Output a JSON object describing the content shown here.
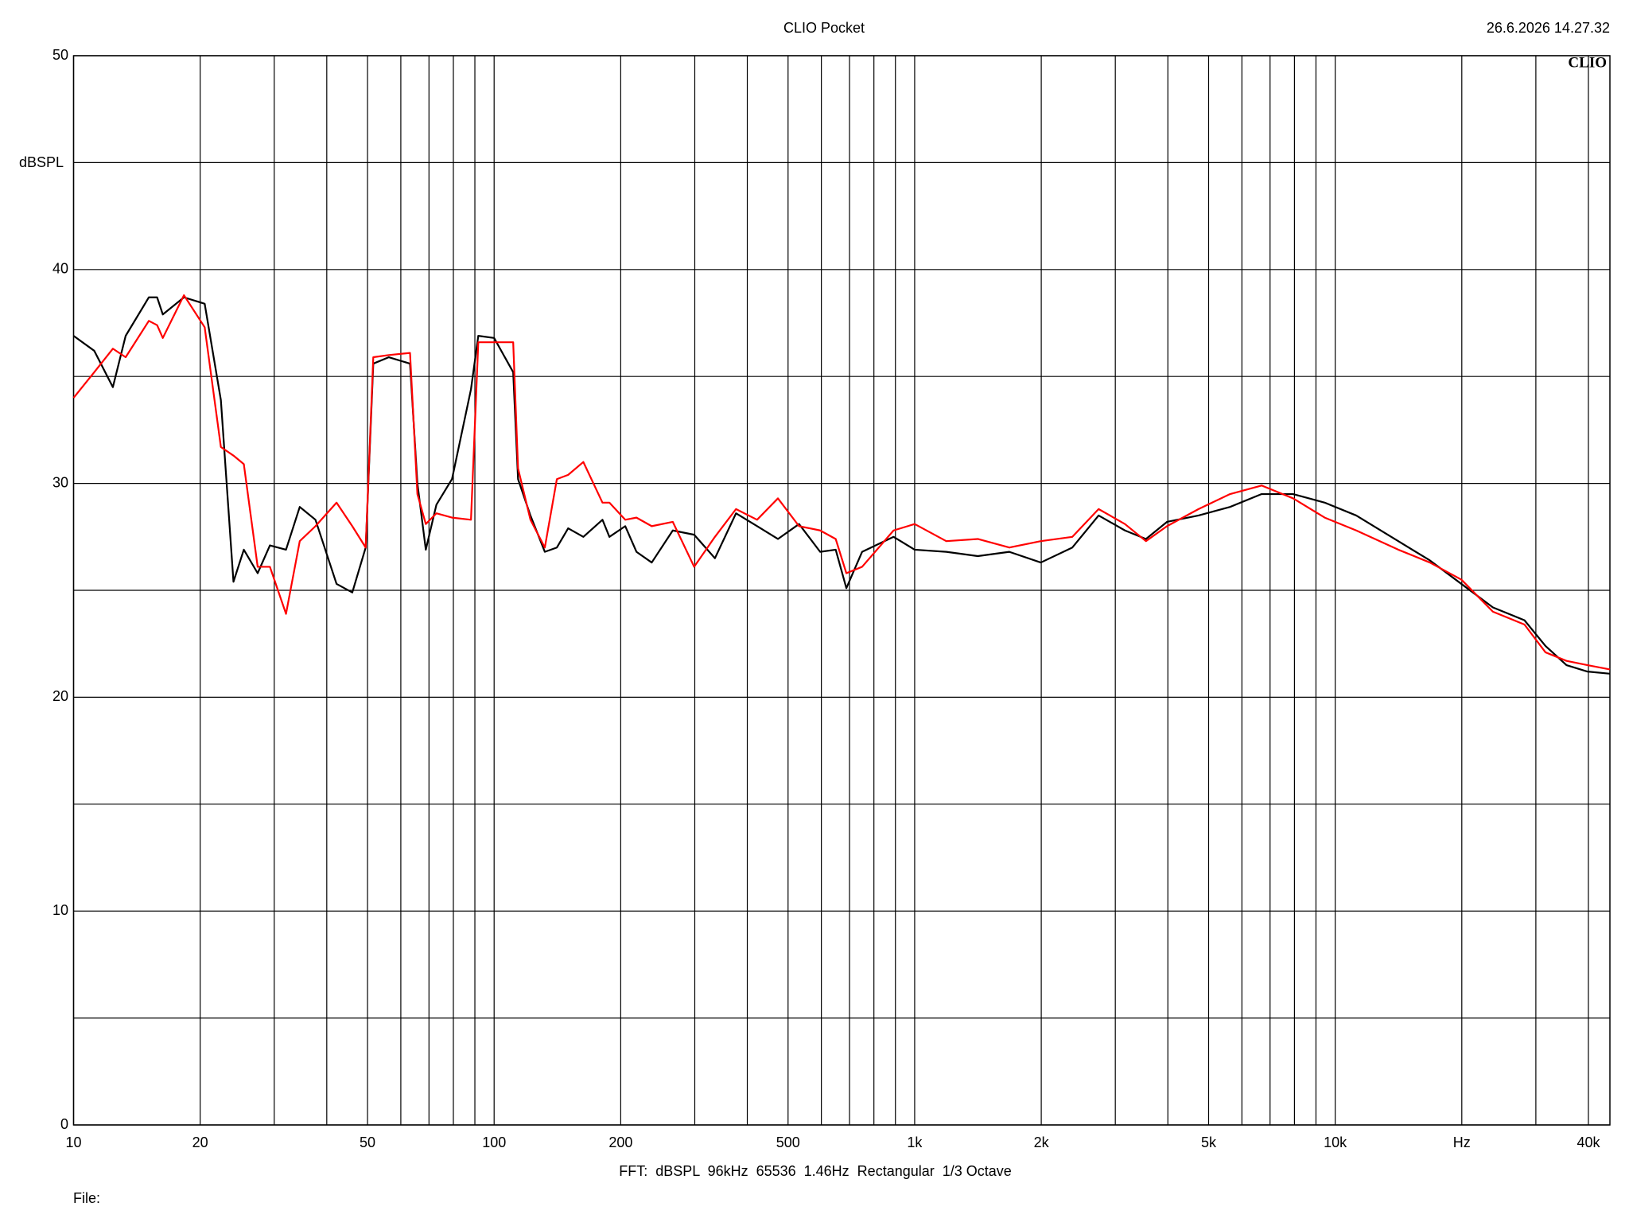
{
  "chart_data": {
    "type": "line",
    "title": "CLIO Pocket",
    "date": "26.6.2026 14.27.32",
    "logo": "CLIO",
    "y_label": "dBSPL",
    "footer": "FFT:  dBSPL  96kHz  65536  1.46Hz  Rectangular  1/3 Octave",
    "file_label": "File:",
    "log_x": true,
    "grid": true,
    "xlim": [
      10,
      45000
    ],
    "ylim": [
      0,
      50
    ],
    "xticks": [
      10,
      20,
      50,
      100,
      200,
      500,
      {
        "value": 1000,
        "label": "1k"
      },
      {
        "value": 2000,
        "label": "2k"
      },
      {
        "value": 5000,
        "label": "5k"
      },
      {
        "value": 10000,
        "label": "10k"
      },
      {
        "value": 20000,
        "label": "Hz"
      },
      {
        "value": 40000,
        "label": "40k"
      }
    ],
    "xminor": [
      30,
      40,
      60,
      70,
      80,
      90,
      300,
      400,
      600,
      700,
      800,
      900,
      3000,
      4000,
      6000,
      7000,
      8000,
      9000,
      30000
    ],
    "yticks": [
      0,
      10,
      20,
      30,
      40,
      50
    ],
    "yminor": [
      5,
      15,
      25,
      35,
      45
    ],
    "x": [
      10,
      11.2,
      12.4,
      13.3,
      15.1,
      15.8,
      16.3,
      18.3,
      20.5,
      22.4,
      24,
      25.4,
      27.4,
      29.3,
      32,
      34.5,
      37.6,
      42.2,
      46,
      49.5,
      51.6,
      56.2,
      63.1,
      65.7,
      68.8,
      72.9,
      79.4,
      88.1,
      91.7,
      100,
      111,
      114,
      122,
      132,
      141,
      150,
      163,
      181,
      188,
      205,
      218,
      237,
      266,
      299,
      335,
      376,
      422,
      473,
      531,
      596,
      649,
      688,
      750,
      891,
      1000,
      1189,
      1413,
      1679,
      1995,
      2371,
      2738,
      3162,
      3548,
      3981,
      4732,
      5623,
      6683,
      7943,
      9441,
      11220,
      14125,
      16788,
      19953,
      23714,
      28184,
      31623,
      35481,
      39811,
      45000
    ],
    "series": [
      {
        "color": "#000000",
        "values": [
          36.9,
          36.2,
          34.5,
          36.9,
          38.7,
          38.7,
          37.9,
          38.7,
          38.4,
          33.9,
          25.4,
          26.9,
          25.8,
          27.1,
          26.9,
          28.9,
          28.3,
          25.3,
          24.9,
          27.0,
          35.6,
          35.9,
          35.6,
          30.0,
          26.9,
          29.0,
          30.2,
          34.4,
          36.9,
          36.8,
          35.2,
          30.2,
          28.5,
          26.8,
          27.0,
          27.9,
          27.5,
          28.3,
          27.5,
          28.0,
          26.8,
          26.3,
          27.8,
          27.6,
          26.5,
          28.6,
          28.0,
          27.4,
          28.1,
          26.8,
          26.9,
          25.1,
          26.8,
          27.5,
          26.9,
          26.8,
          26.6,
          26.8,
          26.3,
          27.0,
          28.5,
          27.8,
          27.4,
          28.2,
          28.5,
          28.9,
          29.5,
          29.5,
          29.1,
          28.5,
          27.3,
          26.4,
          25.3,
          24.2,
          23.6,
          22.4,
          21.5,
          21.2,
          21.1
        ]
      },
      {
        "color": "#ff0000",
        "values": [
          34.0,
          35.2,
          36.3,
          35.9,
          37.6,
          37.4,
          36.8,
          38.8,
          37.3,
          31.7,
          31.3,
          30.9,
          26.1,
          26.1,
          23.9,
          27.3,
          28.0,
          29.1,
          28.0,
          27.0,
          35.9,
          36.0,
          36.1,
          29.5,
          28.1,
          28.6,
          28.4,
          28.3,
          36.6,
          36.6,
          36.6,
          30.7,
          28.3,
          27.0,
          30.2,
          30.4,
          31.0,
          29.1,
          29.1,
          28.3,
          28.4,
          28.0,
          28.2,
          26.1,
          27.5,
          28.8,
          28.3,
          29.3,
          28.0,
          27.8,
          27.4,
          25.8,
          26.1,
          27.8,
          28.1,
          27.3,
          27.4,
          27.0,
          27.3,
          27.5,
          28.8,
          28.1,
          27.3,
          28.0,
          28.8,
          29.5,
          29.9,
          29.3,
          28.4,
          27.8,
          26.9,
          26.3,
          25.5,
          24.0,
          23.4,
          22.1,
          21.7,
          21.5,
          21.3
        ]
      }
    ]
  }
}
